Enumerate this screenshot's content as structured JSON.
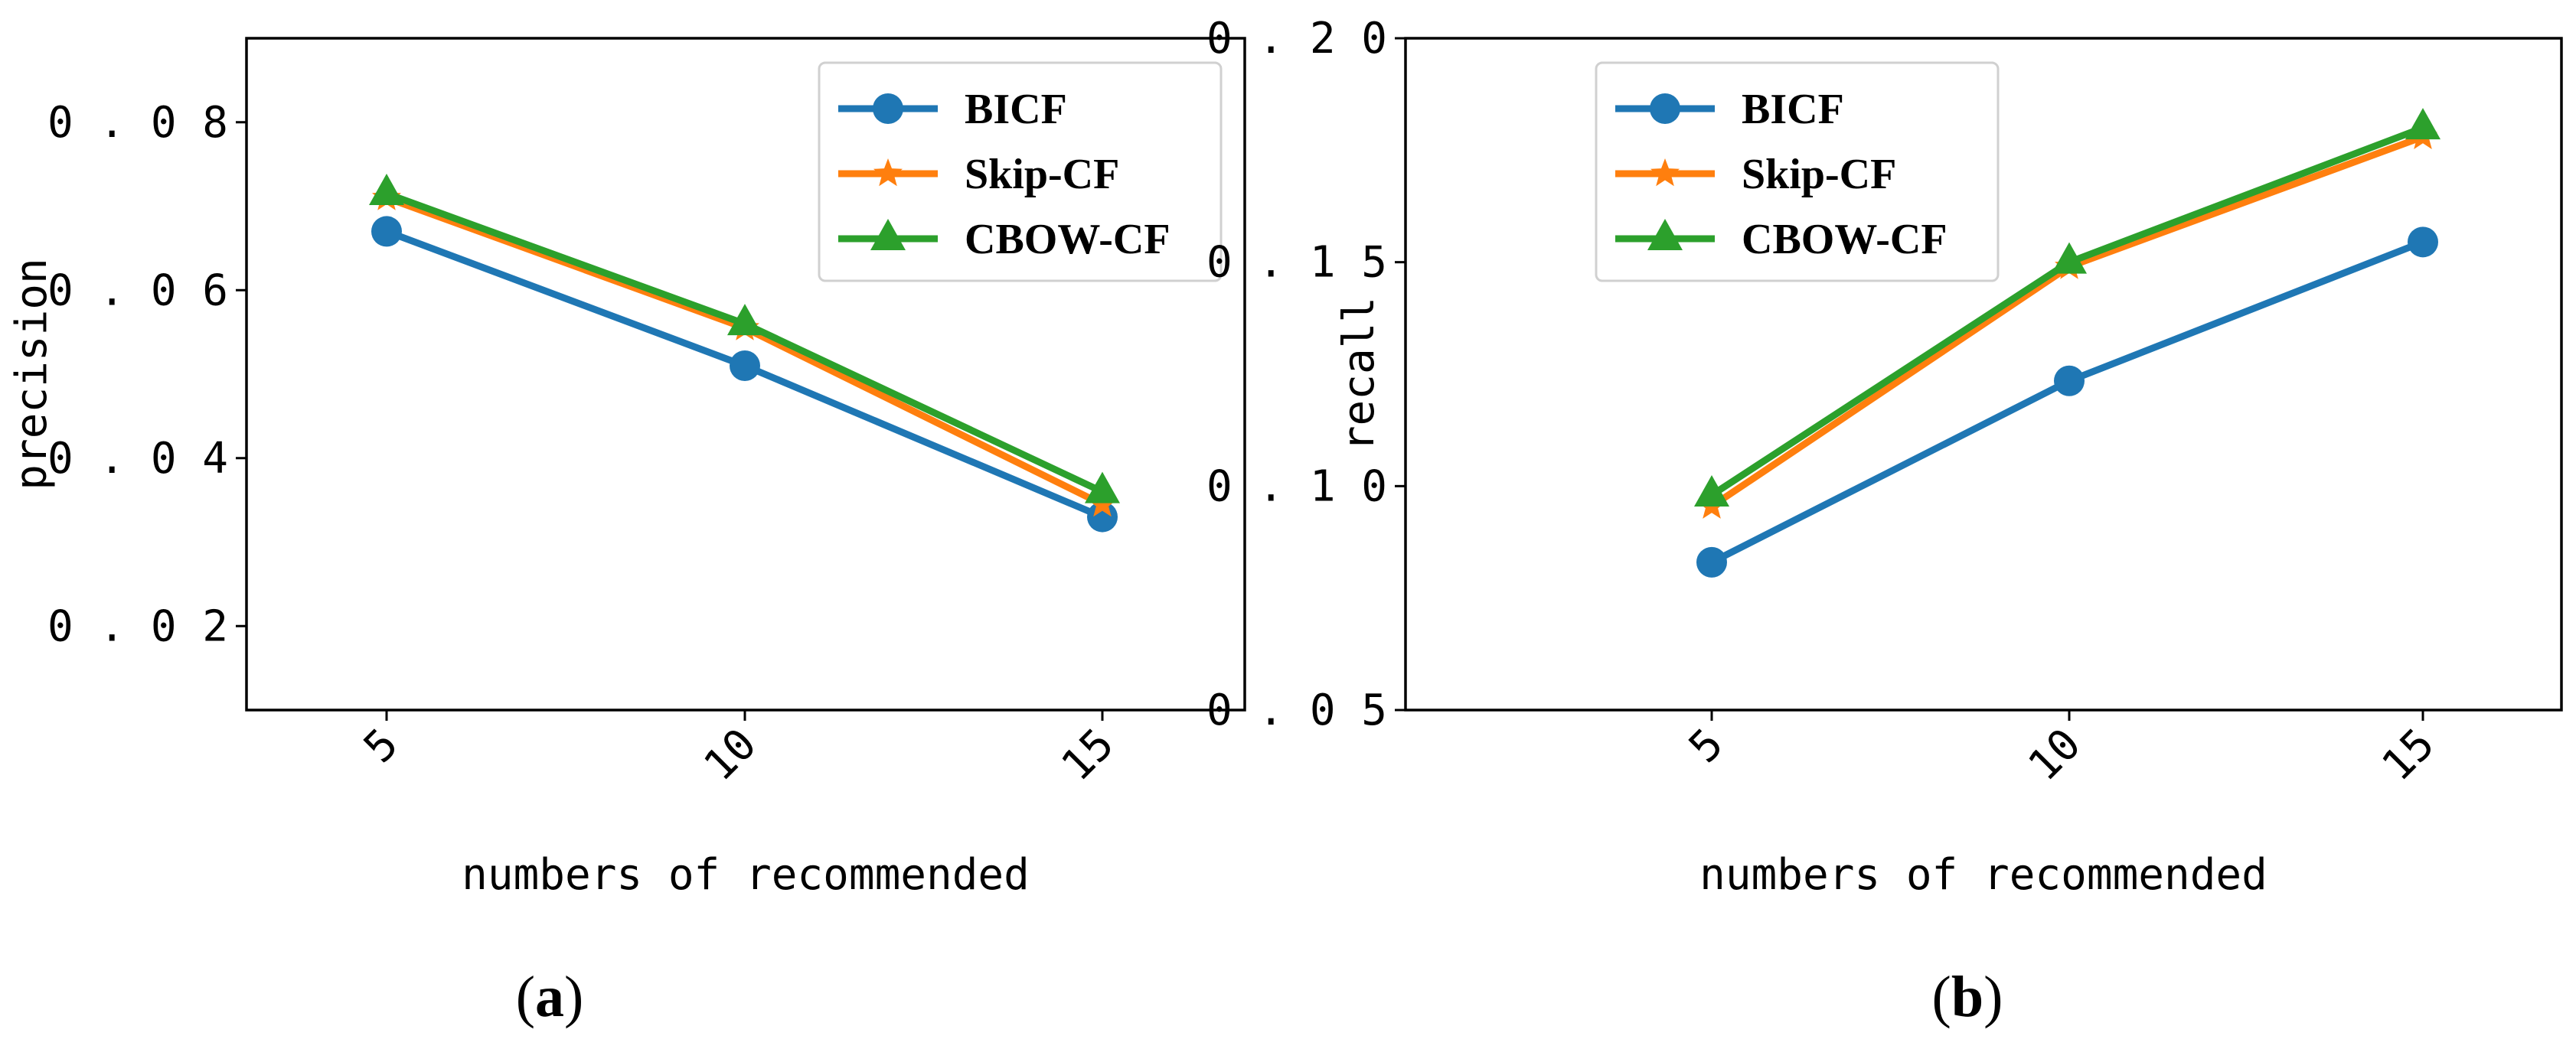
{
  "colors": {
    "BICF": "#1f77b4",
    "Skip-CF": "#ff7f0e",
    "CBOW-CF": "#2ca02c",
    "axis": "#000000"
  },
  "chart_data": [
    {
      "type": "line",
      "panel_label": "(a)",
      "x": [
        5,
        10,
        15
      ],
      "categories": [
        "5",
        "10",
        "15"
      ],
      "xlabel": "numbers of recommended",
      "ylabel": "precision",
      "ylim": [
        0.01,
        0.09
      ],
      "yticks": [
        0.02,
        0.04,
        0.06,
        0.08
      ],
      "ytick_labels": [
        "0.02",
        "0.04",
        "0.06",
        "0.08"
      ],
      "legend_position": "top-right",
      "series": [
        {
          "name": "BICF",
          "marker": "circle",
          "values": [
            0.067,
            0.051,
            0.033
          ]
        },
        {
          "name": "Skip-CF",
          "marker": "star",
          "values": [
            0.071,
            0.0555,
            0.0345
          ]
        },
        {
          "name": "CBOW-CF",
          "marker": "triangle",
          "values": [
            0.0715,
            0.056,
            0.036
          ]
        }
      ]
    },
    {
      "type": "line",
      "panel_label": "(b)",
      "x": [
        5,
        10,
        15
      ],
      "categories": [
        "5",
        "10",
        "15"
      ],
      "xlabel": "numbers of recommended",
      "ylabel": "recall",
      "ylim": [
        0.05,
        0.2
      ],
      "yticks": [
        0.05,
        0.1,
        0.15,
        0.2
      ],
      "ytick_labels": [
        "0.05",
        "0.10",
        "0.15",
        "0.20"
      ],
      "legend_position": "top-left",
      "series": [
        {
          "name": "BICF",
          "marker": "circle",
          "values": [
            0.083,
            0.1235,
            0.1545
          ]
        },
        {
          "name": "Skip-CF",
          "marker": "star",
          "values": [
            0.0955,
            0.149,
            0.178
          ]
        },
        {
          "name": "CBOW-CF",
          "marker": "triangle",
          "values": [
            0.098,
            0.15,
            0.18
          ]
        }
      ]
    }
  ]
}
